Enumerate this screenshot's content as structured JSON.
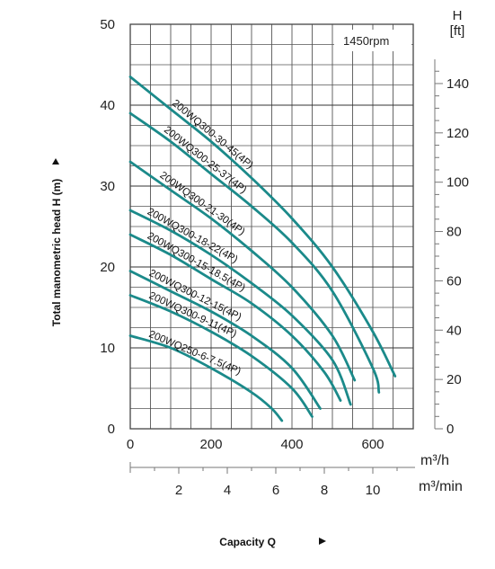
{
  "chart_data": {
    "type": "line",
    "title": "",
    "xlabel": "Capacity Q",
    "ylabel": "Total manometric head H (m)",
    "xlim": [
      0,
      700
    ],
    "ylim": [
      0,
      50
    ],
    "x_ticks": [
      "0",
      "200",
      "400",
      "600"
    ],
    "y_ticks": [
      "0",
      "10",
      "20",
      "30",
      "40",
      "50"
    ],
    "x_unit": "m³/h",
    "x2_ticks": [
      "2",
      "4",
      "6",
      "8",
      "10"
    ],
    "x2_unit": "m³/min",
    "y2_ticks": [
      "0",
      "20",
      "40",
      "60",
      "80",
      "100",
      "120",
      "140"
    ],
    "y2_title": "H",
    "y2_unit": "[ft]",
    "annotation": "1450rpm",
    "grid": true,
    "colors": {
      "curve": "#1b8a8a",
      "grid": "#555555",
      "axis": "#777777"
    },
    "series": [
      {
        "name": "200WQ300-30-45(4P)",
        "x": [
          0,
          100,
          200,
          300,
          400,
          500,
          600,
          655
        ],
        "y": [
          43.5,
          39.5,
          35.5,
          31.0,
          26.0,
          20.0,
          12.0,
          6.5
        ]
      },
      {
        "name": "200WQ300-25-37(4P)",
        "x": [
          0,
          100,
          200,
          300,
          400,
          500,
          600,
          615
        ],
        "y": [
          39.0,
          35.5,
          31.5,
          27.5,
          23.0,
          17.0,
          7.5,
          4.5
        ]
      },
      {
        "name": "200WQ300-21-30(4P)",
        "x": [
          0,
          100,
          200,
          300,
          400,
          500,
          555
        ],
        "y": [
          33.0,
          29.5,
          26.0,
          22.0,
          17.5,
          11.5,
          6.0
        ]
      },
      {
        "name": "200WQ300-18-22(4P)",
        "x": [
          0,
          100,
          200,
          300,
          400,
          500,
          545
        ],
        "y": [
          27.0,
          24.5,
          21.5,
          18.0,
          14.0,
          8.5,
          3.0
        ]
      },
      {
        "name": "200WQ300-15-18.5(4P)",
        "x": [
          0,
          100,
          200,
          300,
          400,
          480,
          520
        ],
        "y": [
          24.0,
          21.5,
          18.5,
          15.5,
          11.5,
          7.0,
          3.5
        ]
      },
      {
        "name": "200WQ300-12-15(4P)",
        "x": [
          0,
          100,
          200,
          300,
          400,
          470
        ],
        "y": [
          19.5,
          17.0,
          14.5,
          11.5,
          7.5,
          2.5
        ]
      },
      {
        "name": "200WQ300-9-11(4P)",
        "x": [
          0,
          100,
          200,
          300,
          400,
          450
        ],
        "y": [
          16.5,
          14.5,
          12.0,
          9.0,
          5.0,
          1.5
        ]
      },
      {
        "name": "200WQ250-6-7.5(4P)",
        "x": [
          0,
          100,
          200,
          300,
          350,
          375
        ],
        "y": [
          11.5,
          10.0,
          7.5,
          4.5,
          2.5,
          1.0
        ]
      }
    ]
  }
}
